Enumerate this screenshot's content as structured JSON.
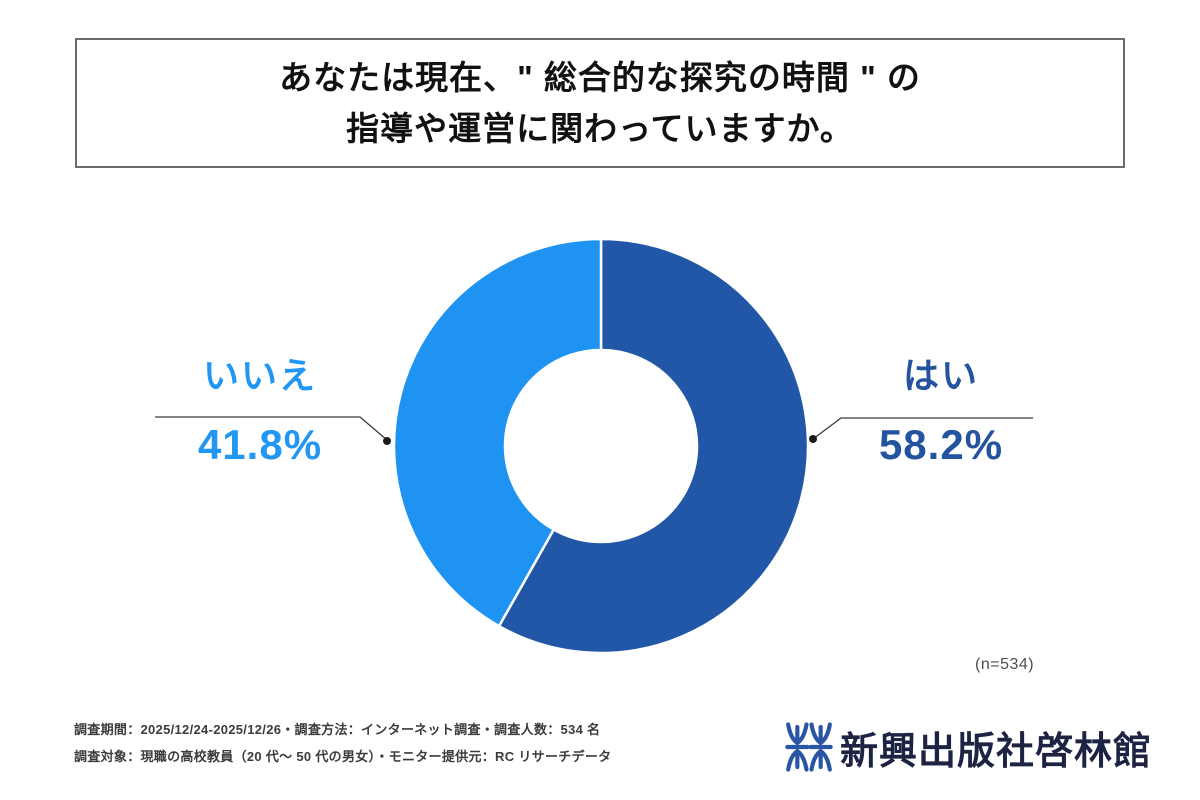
{
  "title": {
    "line1": "あなたは現在、\" 総合的な探究の時間 \" の",
    "line2": "指導や運営に関わっていますか。"
  },
  "chart_data": {
    "type": "pie",
    "variant": "donut",
    "title": "あなたは現在、\"総合的な探究の時間\"の指導や運営に関わっていますか。",
    "direction": "clockwise-from-top",
    "inner_radius_ratio": 0.465,
    "separator_color": "#ffffff",
    "sample_size": 534,
    "sample_size_label": "(n=534)",
    "slices": [
      {
        "label": "はい",
        "value_pct": 58.2,
        "display": "58.2%",
        "color": "#2157A6",
        "text_color": "#24549F"
      },
      {
        "label": "いいえ",
        "value_pct": 41.8,
        "display": "41.8%",
        "color": "#1E93F1",
        "text_color": "#2196F3"
      }
    ]
  },
  "footnotes": {
    "line1": "調査期間：2025/12/24-2025/12/26・調査方法：インターネット調査・調査人数：534 名",
    "line2": "調査対象：現職の高校教員（20 代〜 50 代の男女）・モニター提供元：RC リサーチデータ"
  },
  "logo": {
    "company": "新興出版社啓林館",
    "mark_color": "#2A55A4",
    "text_color": "#1D2342"
  },
  "colors": {
    "leader_line": "#3a3a3a",
    "leader_dot": "#1b1b1b",
    "title_border": "#6a6a70"
  }
}
